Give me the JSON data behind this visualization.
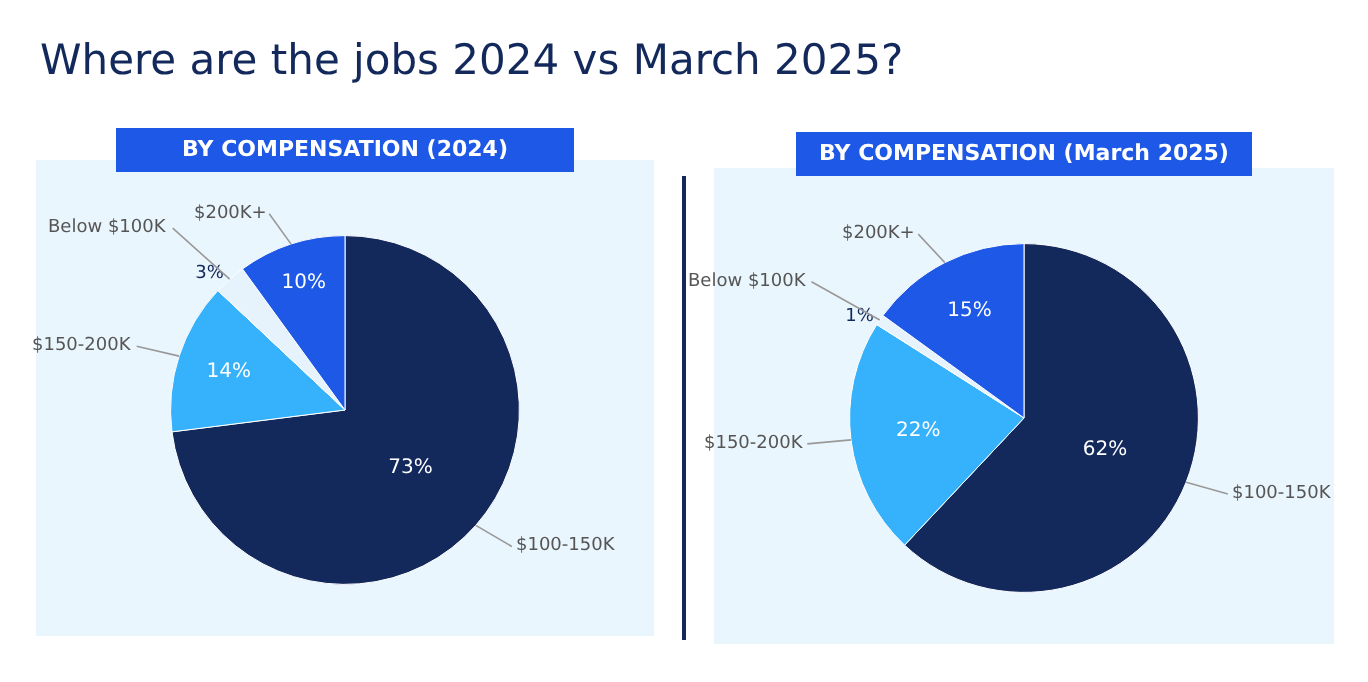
{
  "chart_data": [
    {
      "type": "pie",
      "title": "Where are the jobs 2024 vs March 2025?",
      "subtitle": "BY COMPENSATION (2024)",
      "categories": [
        "$100-150K",
        "$150-200K",
        "Below $100K",
        "$200K+"
      ],
      "values": [
        73,
        14,
        3,
        10
      ],
      "colors": [
        "#13295c",
        "#36b1fb",
        "#e6f2fc",
        "#1d58e6"
      ],
      "value_labels": [
        "73%",
        "14%",
        "3%",
        "10%"
      ]
    },
    {
      "type": "pie",
      "subtitle": "BY COMPENSATION (March 2025)",
      "categories": [
        "$100-150K",
        "$150-200K",
        "Below $100K",
        "$200K+"
      ],
      "values": [
        62,
        22,
        1,
        15
      ],
      "colors": [
        "#13295c",
        "#36b1fb",
        "#e6f2fc",
        "#1d58e6"
      ],
      "value_labels": [
        "62%",
        "22%",
        "1%",
        "15%"
      ]
    }
  ]
}
